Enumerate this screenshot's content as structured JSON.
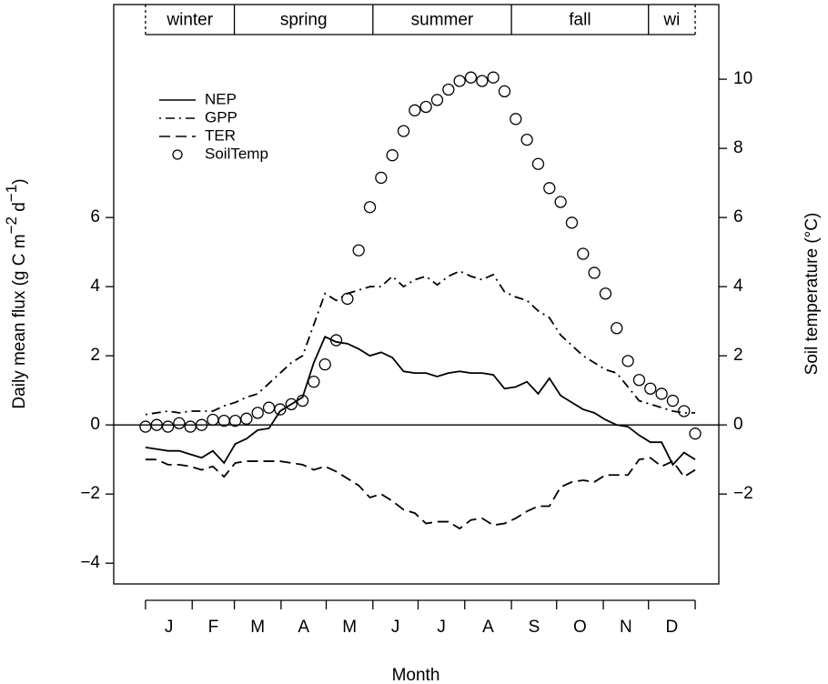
{
  "chart_data": {
    "type": "line",
    "xlabel": "Month",
    "ylabel": [
      "Daily mean flux  (g C m",
      "−2",
      " d",
      "−1",
      ")"
    ],
    "y2label": "Soil temperature (°C)",
    "xlim": [
      -21.1,
      380.7
    ],
    "xticks": [
      0,
      31,
      59,
      90,
      120,
      151,
      181,
      212,
      243,
      273,
      304,
      334,
      365
    ],
    "month_labels": [
      {
        "value": 15.5,
        "label": "J"
      },
      {
        "value": 45,
        "label": "F"
      },
      {
        "value": 74.5,
        "label": "M"
      },
      {
        "value": 105,
        "label": "A"
      },
      {
        "value": 135.5,
        "label": "M"
      },
      {
        "value": 166,
        "label": "J"
      },
      {
        "value": 196.5,
        "label": "J"
      },
      {
        "value": 227.5,
        "label": "A"
      },
      {
        "value": 258,
        "label": "S"
      },
      {
        "value": 288.5,
        "label": "O"
      },
      {
        "value": 319,
        "label": "N"
      },
      {
        "value": 349.5,
        "label": "D"
      }
    ],
    "seasons": [
      {
        "label": "winter",
        "start": 0,
        "end": 59
      },
      {
        "label": "spring",
        "start": 59,
        "end": 151
      },
      {
        "label": "summer",
        "start": 151,
        "end": 243
      },
      {
        "label": "fall",
        "start": 243,
        "end": 334
      },
      {
        "label": "wi",
        "start": 334,
        "end": 365
      }
    ],
    "ylim": [
      -4.6,
      12.16
    ],
    "yticks": [
      {
        "value": -4,
        "label": "−4"
      },
      {
        "value": -2,
        "label": "−2"
      },
      0,
      2,
      4,
      6
    ],
    "y2lim": [
      -4.6,
      12.16
    ],
    "y2ticks": [
      {
        "value": -2,
        "label": "−2"
      },
      0,
      2,
      4,
      6,
      8,
      10
    ],
    "hline": 0,
    "legend": "top-left",
    "x": [
      0,
      7.45,
      14.9,
      22.35,
      29.8,
      37.25,
      44.7,
      52.15,
      59.6,
      67.05,
      74.5,
      81.95,
      89.4,
      96.85,
      104.3,
      111.75,
      119.2,
      126.65,
      134.1,
      141.55,
      149,
      156.45,
      163.9,
      171.35,
      178.8,
      186.25,
      193.7,
      201.15,
      208.6,
      216.05,
      223.5,
      230.95,
      238.4,
      245.85,
      253.3,
      260.75,
      268.2,
      275.65,
      283.1,
      290.55,
      298,
      305.45,
      312.9,
      320.35,
      327.8,
      335.25,
      342.7,
      350.15,
      357.6,
      365
    ],
    "series": [
      {
        "name": "NEP",
        "color": "#000000",
        "style": "solid",
        "values": [
          -0.65,
          -0.7,
          -0.75,
          -0.75,
          -0.85,
          -0.95,
          -0.75,
          -1.1,
          -0.55,
          -0.4,
          -0.15,
          -0.1,
          0.4,
          0.6,
          0.8,
          1.8,
          2.55,
          2.4,
          2.35,
          2.2,
          2.0,
          2.1,
          1.95,
          1.55,
          1.5,
          1.5,
          1.4,
          1.5,
          1.55,
          1.5,
          1.5,
          1.45,
          1.05,
          1.1,
          1.25,
          0.9,
          1.35,
          0.85,
          0.65,
          0.45,
          0.35,
          0.15,
          0.0,
          -0.05,
          -0.3,
          -0.5,
          -0.5,
          -1.15,
          -0.8,
          -1.0
        ]
      },
      {
        "name": "GPP",
        "color": "#000000",
        "style": "dotdash",
        "values": [
          0.3,
          0.35,
          0.4,
          0.35,
          0.4,
          0.4,
          0.4,
          0.55,
          0.65,
          0.8,
          0.9,
          1.2,
          1.5,
          1.8,
          2.0,
          2.9,
          3.8,
          3.6,
          3.8,
          3.9,
          4.0,
          4.0,
          4.3,
          4.0,
          4.2,
          4.3,
          4.05,
          4.3,
          4.45,
          4.3,
          4.2,
          4.35,
          3.85,
          3.7,
          3.6,
          3.3,
          3.1,
          2.6,
          2.3,
          2.0,
          1.8,
          1.6,
          1.5,
          1.1,
          0.7,
          0.6,
          0.5,
          0.4,
          0.35,
          0.35
        ]
      },
      {
        "name": "TER",
        "color": "#000000",
        "style": "dashed",
        "values": [
          -1.0,
          -1.0,
          -1.15,
          -1.15,
          -1.2,
          -1.3,
          -1.2,
          -1.5,
          -1.1,
          -1.05,
          -1.05,
          -1.05,
          -1.05,
          -1.1,
          -1.15,
          -1.3,
          -1.2,
          -1.35,
          -1.55,
          -1.75,
          -2.1,
          -2.0,
          -2.2,
          -2.45,
          -2.55,
          -2.85,
          -2.8,
          -2.8,
          -3.0,
          -2.75,
          -2.7,
          -2.9,
          -2.85,
          -2.7,
          -2.5,
          -2.35,
          -2.35,
          -1.8,
          -1.65,
          -1.6,
          -1.65,
          -1.45,
          -1.45,
          -1.45,
          -1.0,
          -0.95,
          -1.2,
          -1.05,
          -1.5,
          -1.3
        ]
      },
      {
        "name": "SoilTemp",
        "color": "#000000",
        "style": "points",
        "axis": "y2",
        "values": [
          -0.05,
          0,
          -0.05,
          0.05,
          -0.05,
          0,
          0.15,
          0.12,
          0.12,
          0.18,
          0.35,
          0.5,
          0.45,
          0.6,
          0.7,
          1.25,
          1.75,
          2.45,
          3.65,
          5.05,
          6.3,
          7.15,
          7.8,
          8.5,
          9.1,
          9.2,
          9.4,
          9.7,
          9.95,
          10.05,
          9.95,
          10.05,
          9.65,
          8.85,
          8.25,
          7.55,
          6.85,
          6.45,
          5.85,
          4.95,
          4.4,
          3.8,
          2.8,
          1.85,
          1.3,
          1.05,
          0.9,
          0.7,
          0.4,
          -0.25
        ]
      }
    ]
  }
}
